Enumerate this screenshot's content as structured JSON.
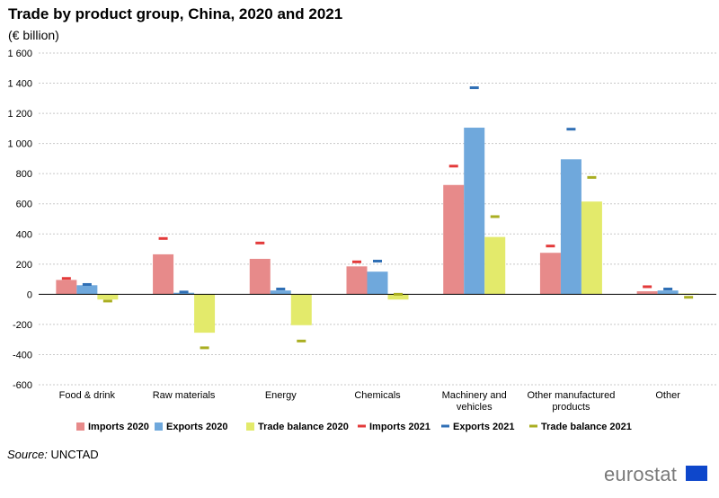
{
  "chart_data": {
    "type": "bar",
    "title": "Trade by product group, China, 2020 and 2021",
    "subtitle": "(€ billion)",
    "ylim": [
      -600,
      1600
    ],
    "yticks": [
      1600,
      1400,
      1200,
      1000,
      800,
      600,
      400,
      200,
      0,
      -200,
      -400,
      -600
    ],
    "ytick_labels": [
      "1 600",
      "1 400",
      "1 200",
      "1 000",
      "800",
      "600",
      "400",
      "200",
      "0",
      "-200",
      "-400",
      "-600"
    ],
    "categories": [
      "Food & drink",
      "Raw materials",
      "Energy",
      "Chemicals",
      "Machinery and vehicles",
      "Other manufactured products",
      "Other"
    ],
    "category_lines": [
      [
        "Food & drink"
      ],
      [
        "Raw materials"
      ],
      [
        "Energy"
      ],
      [
        "Chemicals"
      ],
      [
        "Machinery and",
        "vehicles"
      ],
      [
        "Other manufactured",
        "products"
      ],
      [
        "Other"
      ]
    ],
    "bar_series": [
      {
        "name": "Imports 2020",
        "color": "#e78a8a",
        "values": [
          95,
          265,
          235,
          185,
          725,
          275,
          20
        ]
      },
      {
        "name": "Exports 2020",
        "color": "#6fa8dc",
        "values": [
          60,
          10,
          25,
          150,
          1105,
          895,
          25
        ]
      },
      {
        "name": "Trade balance 2020",
        "color": "#e3ea6b",
        "values": [
          -35,
          -255,
          -205,
          -35,
          380,
          615,
          5
        ]
      }
    ],
    "marker_series": [
      {
        "name": "Imports 2021",
        "color": "#e33a3a",
        "values": [
          105,
          370,
          340,
          215,
          850,
          320,
          50
        ]
      },
      {
        "name": "Exports 2021",
        "color": "#2f6fb5",
        "values": [
          65,
          15,
          35,
          220,
          1370,
          1095,
          35
        ]
      },
      {
        "name": "Trade balance 2021",
        "color": "#aaae21",
        "values": [
          -45,
          -355,
          -310,
          0,
          515,
          775,
          -20
        ]
      }
    ],
    "legend": [
      "Imports 2020",
      "Exports 2020",
      "Trade balance 2020",
      "Imports 2021",
      "Exports 2021",
      "Trade balance 2021"
    ],
    "legend_position": "bottom"
  },
  "source_label": "Source:",
  "source_value": "UNCTAD",
  "logo_text": "eurostat"
}
